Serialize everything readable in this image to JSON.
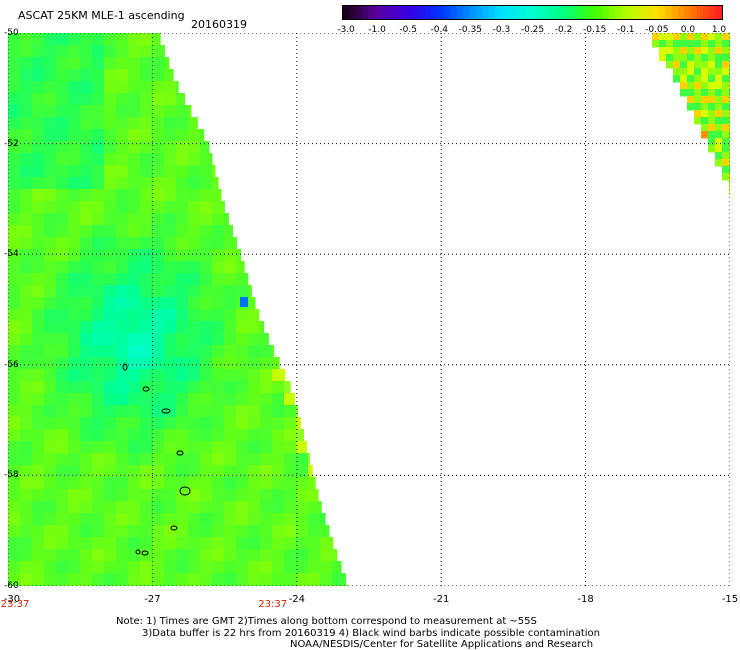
{
  "header": {
    "title": "ASCAT 25KM MLE-1 ascending",
    "date": "20160319"
  },
  "colorbar": {
    "labels": [
      "-3.0",
      "-1.0",
      "-0.5",
      "-0.4",
      "-0.35",
      "-0.3",
      "-0.25",
      "-0.2",
      "-0.15",
      "-0.1",
      "-0.05",
      "0.0",
      "1.0"
    ],
    "colors": [
      "#1a001a",
      "#5a00a0",
      "#3a00e0",
      "#0030ff",
      "#0090ff",
      "#00e0ff",
      "#00ffd0",
      "#00ff80",
      "#40ff00",
      "#b0ff00",
      "#ffe000",
      "#ff8000",
      "#ff2020"
    ]
  },
  "map": {
    "lat_labels": [
      "-50",
      "-52",
      "-54",
      "-56",
      "-58",
      "-60"
    ],
    "lat_values": [
      -50,
      -52,
      -54,
      -56,
      -58,
      -60
    ],
    "lon_labels": [
      "-30",
      "-27",
      "-24",
      "-21",
      "-18",
      "-15"
    ],
    "lon_values": [
      -30,
      -27,
      -24,
      -21,
      -18,
      -15
    ],
    "time_labels": [
      "23:37",
      "23:37"
    ],
    "time_lon_values": [
      -30,
      -24.5
    ]
  },
  "notes": {
    "line1": "Note: 1) Times are GMT 2)Times along bottom correspond to measurement at ~55S",
    "line2": "3)Data buffer is 22 hrs from 20160319 4) Black wind barbs indicate possible contamination",
    "line3": "NOAA/NESDIS/Center for Satellite Applications and Research"
  }
}
